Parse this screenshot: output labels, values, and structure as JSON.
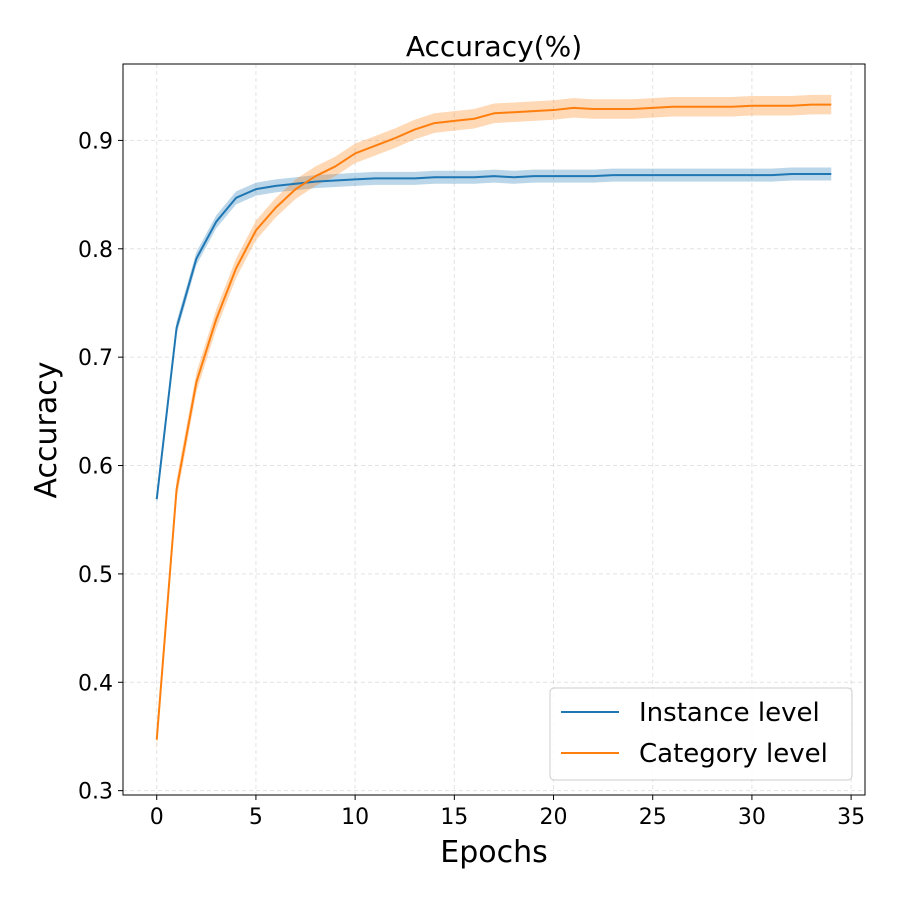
{
  "chart_data": {
    "type": "line",
    "title": "Accuracy(%)",
    "xlabel": "Epochs",
    "ylabel": "Accuracy",
    "xlim": [
      -1.7,
      35.7
    ],
    "ylim": [
      0.296,
      0.9705
    ],
    "xticks": [
      0,
      5,
      10,
      15,
      20,
      25,
      30,
      35
    ],
    "yticks": [
      0.3,
      0.4,
      0.5,
      0.6,
      0.7,
      0.8,
      0.9
    ],
    "xtick_labels": [
      "0",
      "5",
      "10",
      "15",
      "20",
      "25",
      "30",
      "35"
    ],
    "ytick_labels": [
      "0.3",
      "0.4",
      "0.5",
      "0.6",
      "0.7",
      "0.8",
      "0.9"
    ],
    "grid": true,
    "legend_position": "lower-right",
    "x": [
      0,
      1,
      2,
      3,
      4,
      5,
      6,
      7,
      8,
      9,
      10,
      11,
      12,
      13,
      14,
      15,
      16,
      17,
      18,
      19,
      20,
      21,
      22,
      23,
      24,
      25,
      26,
      27,
      28,
      29,
      30,
      31,
      32,
      33,
      34
    ],
    "series": [
      {
        "name": "Instance level",
        "color": "#1f77b4",
        "values": [
          0.569,
          0.727,
          0.791,
          0.825,
          0.847,
          0.855,
          0.858,
          0.86,
          0.862,
          0.863,
          0.864,
          0.865,
          0.865,
          0.865,
          0.866,
          0.866,
          0.866,
          0.867,
          0.866,
          0.867,
          0.867,
          0.867,
          0.867,
          0.868,
          0.868,
          0.868,
          0.868,
          0.868,
          0.868,
          0.868,
          0.868,
          0.868,
          0.869,
          0.869,
          0.869
        ],
        "band": 0.006
      },
      {
        "name": "Category level",
        "color": "#ff7f0e",
        "values": [
          0.347,
          0.578,
          0.677,
          0.735,
          0.782,
          0.817,
          0.838,
          0.855,
          0.867,
          0.876,
          0.888,
          0.895,
          0.902,
          0.91,
          0.916,
          0.918,
          0.92,
          0.925,
          0.926,
          0.927,
          0.928,
          0.93,
          0.929,
          0.929,
          0.929,
          0.93,
          0.931,
          0.931,
          0.931,
          0.931,
          0.932,
          0.932,
          0.932,
          0.933,
          0.933
        ],
        "band": 0.009
      }
    ]
  }
}
